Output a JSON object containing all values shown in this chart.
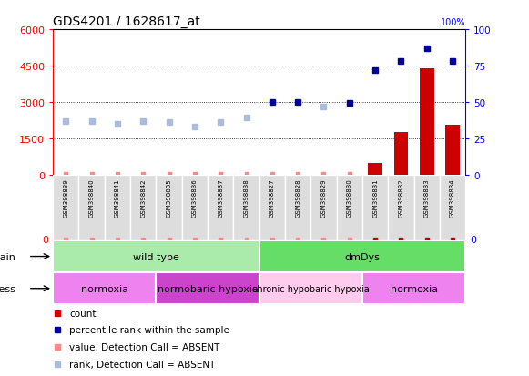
{
  "title": "GDS4201 / 1628617_at",
  "samples": [
    "GSM398839",
    "GSM398840",
    "GSM398841",
    "GSM398842",
    "GSM398835",
    "GSM398836",
    "GSM398837",
    "GSM398838",
    "GSM398827",
    "GSM398828",
    "GSM398829",
    "GSM398830",
    "GSM398831",
    "GSM398832",
    "GSM398833",
    "GSM398834"
  ],
  "count_values": [
    25,
    25,
    28,
    25,
    25,
    25,
    25,
    30,
    25,
    25,
    25,
    25,
    480,
    1750,
    4380,
    2050
  ],
  "count_absent": [
    true,
    true,
    true,
    true,
    true,
    true,
    true,
    true,
    true,
    true,
    true,
    true,
    false,
    false,
    false,
    false
  ],
  "rank_values": [
    37,
    37,
    35,
    37,
    36,
    33,
    36,
    39,
    50,
    50,
    47,
    49,
    72,
    78,
    87,
    78
  ],
  "rank_absent": [
    true,
    true,
    true,
    true,
    true,
    true,
    true,
    true,
    false,
    false,
    true,
    false,
    false,
    false,
    false,
    false
  ],
  "ylim_left": [
    0,
    6000
  ],
  "ylim_right": [
    0,
    100
  ],
  "yticks_left": [
    0,
    1500,
    3000,
    4500,
    6000
  ],
  "yticks_right": [
    0,
    25,
    50,
    75,
    100
  ],
  "strain_groups": [
    {
      "label": "wild type",
      "start": 0,
      "end": 8,
      "color": "#aaeaaa"
    },
    {
      "label": "dmDys",
      "start": 8,
      "end": 16,
      "color": "#66dd66"
    }
  ],
  "stress_groups": [
    {
      "label": "normoxia",
      "start": 0,
      "end": 4,
      "color": "#ee82ee"
    },
    {
      "label": "normobaric hypoxia",
      "start": 4,
      "end": 8,
      "color": "#cc44cc"
    },
    {
      "label": "chronic hypobaric hypoxia",
      "start": 8,
      "end": 12,
      "color": "#ffccee"
    },
    {
      "label": "normoxia",
      "start": 12,
      "end": 16,
      "color": "#ee82ee"
    }
  ],
  "color_count_present": "#cc0000",
  "color_count_absent": "#ff8888",
  "color_rank_present": "#000099",
  "color_rank_absent": "#aabbdd",
  "bg_color": "#ffffff",
  "plot_bg": "#ffffff",
  "col_bg": "#dddddd"
}
